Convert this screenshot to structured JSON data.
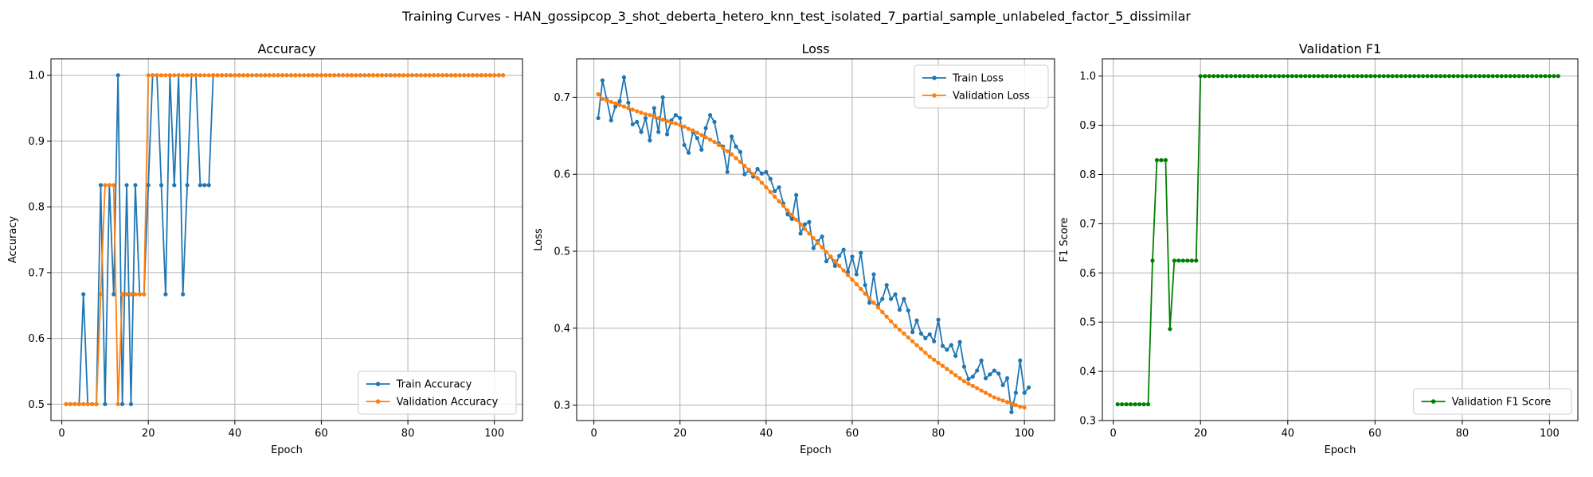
{
  "figure": {
    "title": "Training Curves - HAN_gossipcop_3_shot_deberta_hetero_knn_test_isolated_7_partial_sample_unlabeled_factor_5_dissimilar"
  },
  "colors": {
    "train": "#1f77b4",
    "validation": "#ff7f0e",
    "f1": "#008000",
    "grid": "#b0b0b0"
  },
  "chart_data": [
    {
      "type": "line",
      "title": "Accuracy",
      "xlabel": "Epoch",
      "ylabel": "Accuracy",
      "xlim": [
        -2.5,
        106.5
      ],
      "ylim": [
        0.475,
        1.025
      ],
      "xticks": [
        0,
        20,
        40,
        60,
        80,
        100
      ],
      "yticks": [
        0.5,
        0.6,
        0.7,
        0.8,
        0.9,
        1.0
      ],
      "ytick_labels": [
        "0.5",
        "0.6",
        "0.7",
        "0.8",
        "0.9",
        "1.0"
      ],
      "grid": true,
      "legend_position": "lower-right",
      "series": [
        {
          "name": "Train Accuracy",
          "color": "#1f77b4",
          "x_start": 1,
          "values": [
            0.5,
            0.5,
            0.5,
            0.5,
            0.667,
            0.5,
            0.5,
            0.5,
            0.833,
            0.5,
            0.833,
            0.667,
            1.0,
            0.5,
            0.833,
            0.5,
            0.833,
            0.667,
            0.667,
            0.833,
            1.0,
            1.0,
            0.833,
            0.667,
            1.0,
            0.833,
            1.0,
            0.667,
            0.833,
            1.0,
            1.0,
            0.833,
            0.833,
            0.833,
            1.0,
            1.0,
            1.0,
            1.0,
            1.0,
            1.0,
            1.0,
            1.0,
            1.0,
            1.0,
            1.0,
            1.0,
            1.0,
            1.0,
            1.0,
            1.0,
            1.0,
            1.0,
            1.0,
            1.0,
            1.0,
            1.0,
            1.0,
            1.0,
            1.0,
            1.0,
            1.0,
            1.0,
            1.0,
            1.0,
            1.0,
            1.0,
            1.0,
            1.0,
            1.0,
            1.0,
            1.0,
            1.0,
            1.0,
            1.0,
            1.0,
            1.0,
            1.0,
            1.0,
            1.0,
            1.0,
            1.0,
            1.0,
            1.0,
            1.0,
            1.0,
            1.0,
            1.0,
            1.0,
            1.0,
            1.0,
            1.0,
            1.0,
            1.0,
            1.0,
            1.0,
            1.0,
            1.0,
            1.0,
            1.0,
            1.0,
            1.0,
            1.0
          ]
        },
        {
          "name": "Validation Accuracy",
          "color": "#ff7f0e",
          "x_start": 1,
          "values": [
            0.5,
            0.5,
            0.5,
            0.5,
            0.5,
            0.5,
            0.5,
            0.5,
            0.667,
            0.833,
            0.833,
            0.833,
            0.5,
            0.667,
            0.667,
            0.667,
            0.667,
            0.667,
            0.667,
            1.0,
            1.0,
            1.0,
            1.0,
            1.0,
            1.0,
            1.0,
            1.0,
            1.0,
            1.0,
            1.0,
            1.0,
            1.0,
            1.0,
            1.0,
            1.0,
            1.0,
            1.0,
            1.0,
            1.0,
            1.0,
            1.0,
            1.0,
            1.0,
            1.0,
            1.0,
            1.0,
            1.0,
            1.0,
            1.0,
            1.0,
            1.0,
            1.0,
            1.0,
            1.0,
            1.0,
            1.0,
            1.0,
            1.0,
            1.0,
            1.0,
            1.0,
            1.0,
            1.0,
            1.0,
            1.0,
            1.0,
            1.0,
            1.0,
            1.0,
            1.0,
            1.0,
            1.0,
            1.0,
            1.0,
            1.0,
            1.0,
            1.0,
            1.0,
            1.0,
            1.0,
            1.0,
            1.0,
            1.0,
            1.0,
            1.0,
            1.0,
            1.0,
            1.0,
            1.0,
            1.0,
            1.0,
            1.0,
            1.0,
            1.0,
            1.0,
            1.0,
            1.0,
            1.0,
            1.0,
            1.0,
            1.0,
            1.0
          ]
        }
      ]
    },
    {
      "type": "line",
      "title": "Loss",
      "xlabel": "Epoch",
      "ylabel": "Loss",
      "xlim": [
        -4,
        107
      ],
      "ylim": [
        0.28,
        0.75
      ],
      "xticks": [
        0,
        20,
        40,
        60,
        80,
        100
      ],
      "yticks": [
        0.3,
        0.4,
        0.5,
        0.6,
        0.7
      ],
      "ytick_labels": [
        "0.3",
        "0.4",
        "0.5",
        "0.6",
        "0.7"
      ],
      "grid": true,
      "legend_position": "upper-right",
      "series": [
        {
          "name": "Train Loss",
          "color": "#1f77b4",
          "x_start": 1,
          "values": [
            0.673,
            0.722,
            0.697,
            0.67,
            0.688,
            0.695,
            0.726,
            0.693,
            0.665,
            0.668,
            0.655,
            0.673,
            0.644,
            0.686,
            0.655,
            0.7,
            0.652,
            0.67,
            0.677,
            0.673,
            0.638,
            0.628,
            0.655,
            0.647,
            0.632,
            0.66,
            0.677,
            0.668,
            0.64,
            0.636,
            0.603,
            0.649,
            0.636,
            0.629,
            0.6,
            0.605,
            0.597,
            0.607,
            0.601,
            0.603,
            0.594,
            0.578,
            0.583,
            0.562,
            0.548,
            0.542,
            0.573,
            0.523,
            0.535,
            0.538,
            0.504,
            0.513,
            0.519,
            0.487,
            0.493,
            0.481,
            0.494,
            0.502,
            0.473,
            0.493,
            0.47,
            0.498,
            0.456,
            0.433,
            0.47,
            0.43,
            0.438,
            0.456,
            0.438,
            0.444,
            0.424,
            0.438,
            0.423,
            0.395,
            0.41,
            0.393,
            0.387,
            0.392,
            0.383,
            0.411,
            0.377,
            0.372,
            0.378,
            0.364,
            0.382,
            0.35,
            0.334,
            0.337,
            0.345,
            0.358,
            0.335,
            0.34,
            0.345,
            0.341,
            0.326,
            0.335,
            0.291,
            0.316,
            0.358,
            0.316,
            0.323
          ]
        },
        {
          "name": "Validation Loss",
          "color": "#ff7f0e",
          "x_start": 1,
          "values": [
            0.704,
            0.698,
            0.696,
            0.694,
            0.692,
            0.69,
            0.688,
            0.686,
            0.684,
            0.682,
            0.68,
            0.678,
            0.677,
            0.675,
            0.673,
            0.671,
            0.669,
            0.667,
            0.666,
            0.664,
            0.662,
            0.659,
            0.657,
            0.654,
            0.651,
            0.648,
            0.645,
            0.642,
            0.638,
            0.634,
            0.63,
            0.626,
            0.621,
            0.616,
            0.611,
            0.606,
            0.6,
            0.595,
            0.589,
            0.583,
            0.577,
            0.571,
            0.565,
            0.559,
            0.553,
            0.547,
            0.541,
            0.535,
            0.529,
            0.523,
            0.517,
            0.511,
            0.505,
            0.499,
            0.493,
            0.487,
            0.481,
            0.475,
            0.469,
            0.463,
            0.457,
            0.451,
            0.445,
            0.439,
            0.433,
            0.427,
            0.421,
            0.415,
            0.409,
            0.403,
            0.398,
            0.393,
            0.388,
            0.383,
            0.378,
            0.373,
            0.368,
            0.363,
            0.359,
            0.355,
            0.351,
            0.347,
            0.343,
            0.339,
            0.335,
            0.331,
            0.328,
            0.325,
            0.322,
            0.319,
            0.316,
            0.313,
            0.31,
            0.308,
            0.306,
            0.304,
            0.302,
            0.3,
            0.298,
            0.297
          ]
        }
      ]
    },
    {
      "type": "line",
      "title": "Validation F1",
      "xlabel": "Epoch",
      "ylabel": "F1 Score",
      "xlim": [
        -2.5,
        106.5
      ],
      "ylim": [
        0.3,
        1.035
      ],
      "xticks": [
        0,
        20,
        40,
        60,
        80,
        100
      ],
      "yticks": [
        0.3,
        0.4,
        0.5,
        0.6,
        0.7,
        0.8,
        0.9,
        1.0
      ],
      "ytick_labels": [
        "0.3",
        "0.4",
        "0.5",
        "0.6",
        "0.7",
        "0.8",
        "0.9",
        "1.0"
      ],
      "grid": true,
      "legend_position": "lower-right",
      "series": [
        {
          "name": "Validation F1 Score",
          "color": "#008000",
          "x_start": 1,
          "values": [
            0.333,
            0.333,
            0.333,
            0.333,
            0.333,
            0.333,
            0.333,
            0.333,
            0.625,
            0.829,
            0.829,
            0.829,
            0.486,
            0.625,
            0.625,
            0.625,
            0.625,
            0.625,
            0.625,
            1.0,
            1.0,
            1.0,
            1.0,
            1.0,
            1.0,
            1.0,
            1.0,
            1.0,
            1.0,
            1.0,
            1.0,
            1.0,
            1.0,
            1.0,
            1.0,
            1.0,
            1.0,
            1.0,
            1.0,
            1.0,
            1.0,
            1.0,
            1.0,
            1.0,
            1.0,
            1.0,
            1.0,
            1.0,
            1.0,
            1.0,
            1.0,
            1.0,
            1.0,
            1.0,
            1.0,
            1.0,
            1.0,
            1.0,
            1.0,
            1.0,
            1.0,
            1.0,
            1.0,
            1.0,
            1.0,
            1.0,
            1.0,
            1.0,
            1.0,
            1.0,
            1.0,
            1.0,
            1.0,
            1.0,
            1.0,
            1.0,
            1.0,
            1.0,
            1.0,
            1.0,
            1.0,
            1.0,
            1.0,
            1.0,
            1.0,
            1.0,
            1.0,
            1.0,
            1.0,
            1.0,
            1.0,
            1.0,
            1.0,
            1.0,
            1.0,
            1.0,
            1.0,
            1.0,
            1.0,
            1.0,
            1.0,
            1.0
          ]
        }
      ]
    }
  ]
}
